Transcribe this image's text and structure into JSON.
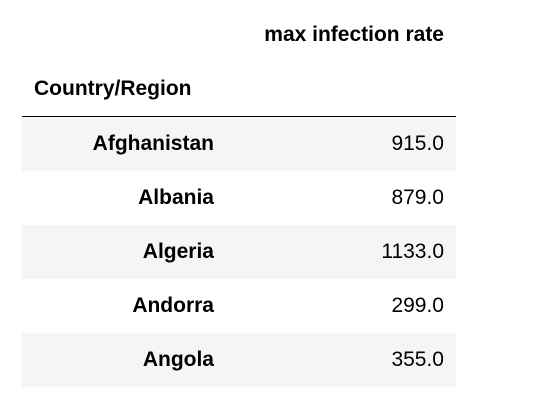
{
  "table": {
    "column_header": "max infection rate",
    "index_name": "Country/Region",
    "rows": [
      {
        "country": "Afghanistan",
        "value": "915.0"
      },
      {
        "country": "Albania",
        "value": "879.0"
      },
      {
        "country": "Algeria",
        "value": "1133.0"
      },
      {
        "country": "Andorra",
        "value": "299.0"
      },
      {
        "country": "Angola",
        "value": "355.0"
      }
    ]
  },
  "colors": {
    "odd_row_bg": "#f5f5f5",
    "even_row_bg": "#ffffff",
    "rule": "#000000"
  }
}
